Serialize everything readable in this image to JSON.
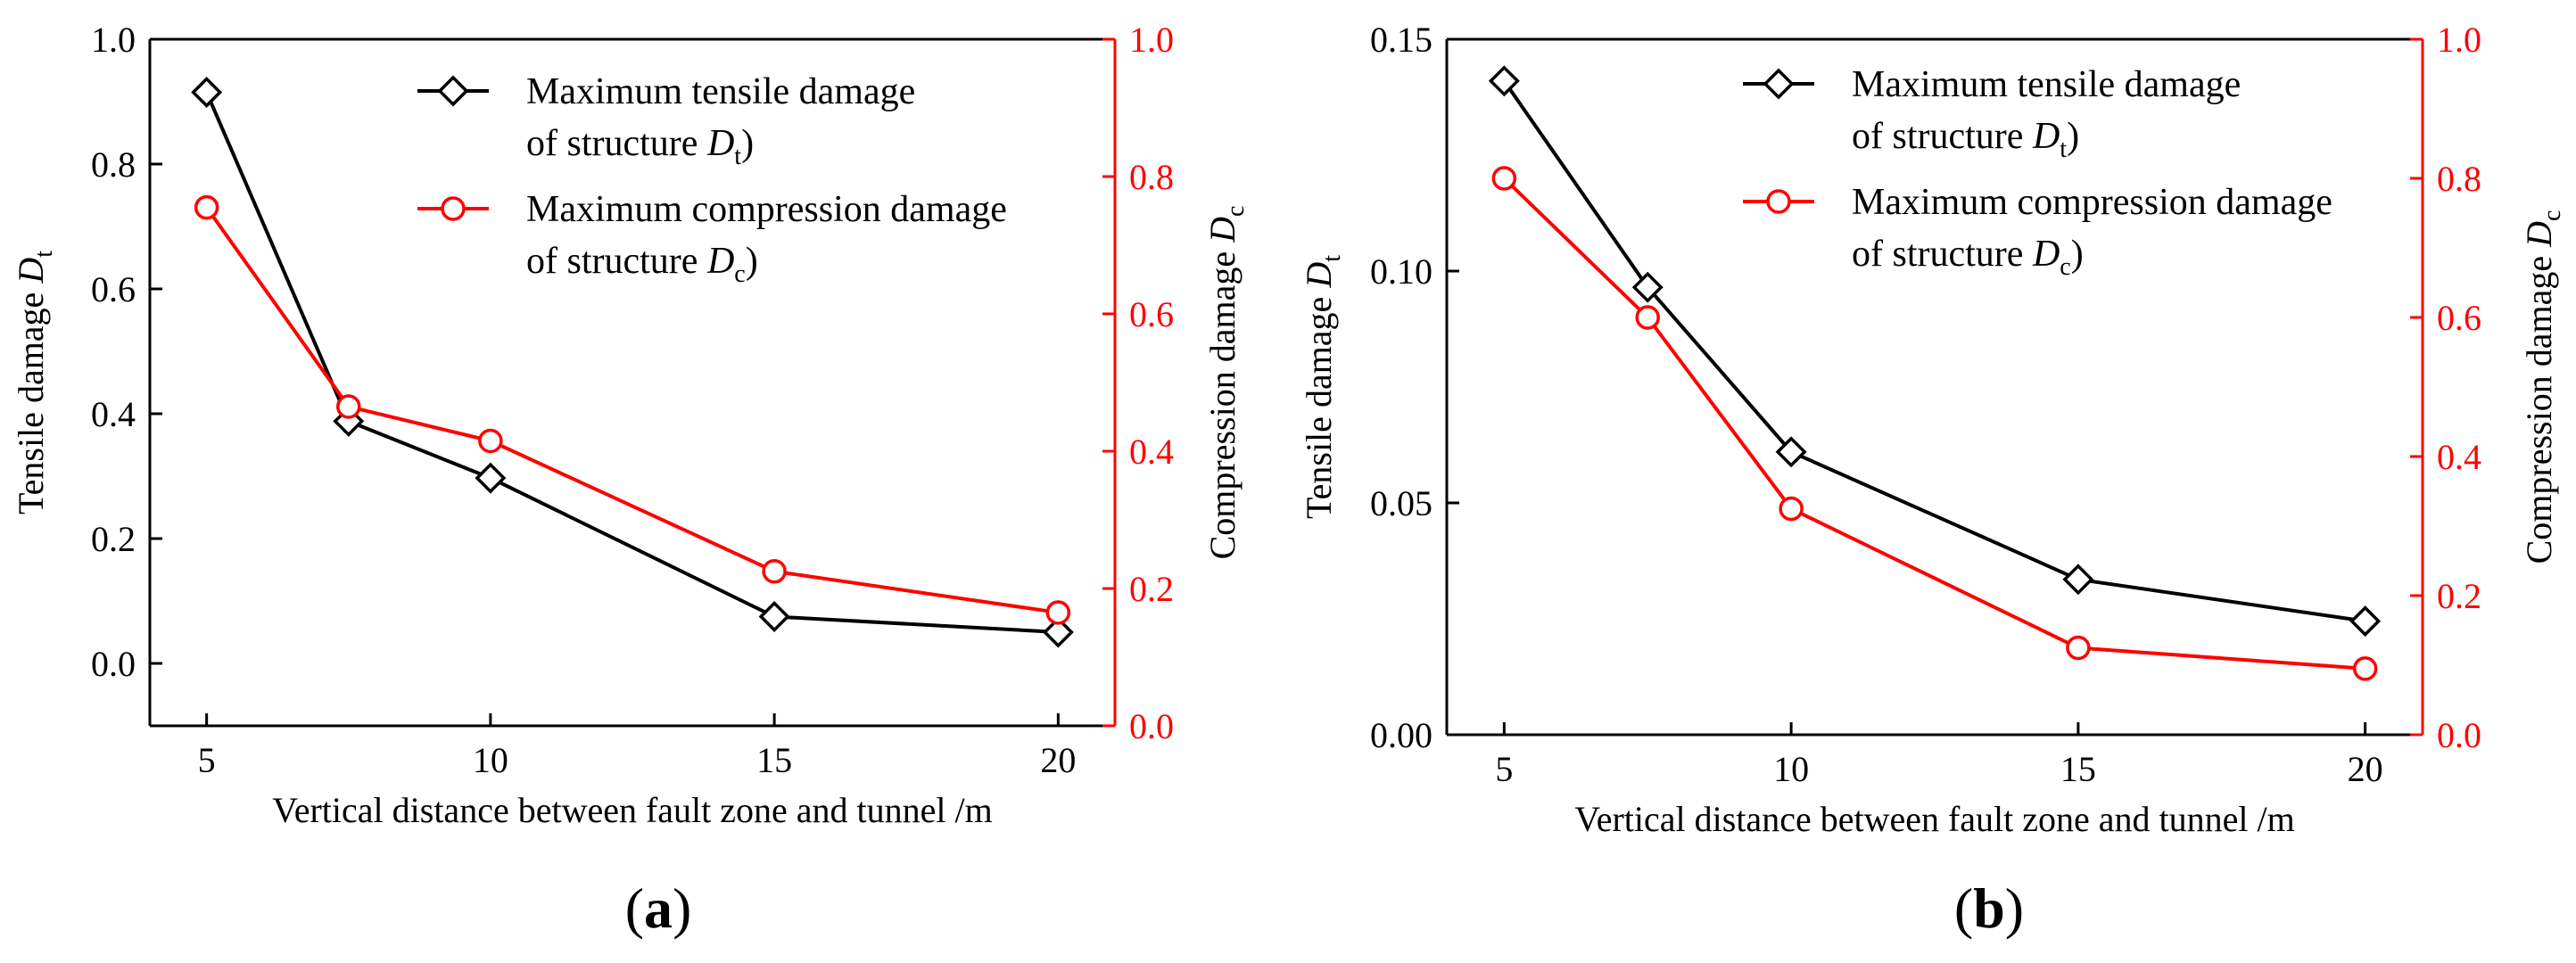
{
  "figure": {
    "colors": {
      "tensile": "#000000",
      "compression": "#ff0000"
    }
  },
  "chart_data": [
    {
      "type": "line",
      "panel_label": "(a)",
      "panel_label_parts": [
        "(",
        "a",
        ")"
      ],
      "xlabel": "Vertical distance between fault zone and tunnel /m",
      "ylabel_left": {
        "main": "Tensile damage ",
        "italic": "D",
        "sub": "t"
      },
      "ylabel_right": {
        "main": "Compression damage ",
        "italic": "D",
        "sub": "c"
      },
      "xlim": [
        4,
        21
      ],
      "xticks": [
        5,
        10,
        15,
        20
      ],
      "xtick_labels": [
        "5",
        "10",
        "15",
        "20"
      ],
      "ylim_left": [
        -0.1,
        1.0
      ],
      "yticks_left": [
        0.0,
        0.2,
        0.4,
        0.6,
        0.8,
        1.0
      ],
      "ytick_labels_left": [
        "0.0",
        "0.2",
        "0.4",
        "0.6",
        "0.8",
        "1.0"
      ],
      "ylim_right": [
        0.0,
        1.0
      ],
      "yticks_right": [
        0.0,
        0.2,
        0.4,
        0.6,
        0.8,
        1.0
      ],
      "ytick_labels_right": [
        "0.0",
        "0.2",
        "0.4",
        "0.6",
        "0.8",
        "1.0"
      ],
      "legend_position": "top-right",
      "series": [
        {
          "name": "Maximum tensile damage of structure Dt)",
          "legend_lines": [
            {
              "text": "Maximum tensile damage"
            },
            {
              "text": "of structure ",
              "italic": "D",
              "sub": "t",
              "after": ")"
            }
          ],
          "axis": "left",
          "marker": "diamond",
          "color": "#000000",
          "x": [
            5,
            7.5,
            10,
            15,
            20
          ],
          "y": [
            0.915,
            0.388,
            0.297,
            0.075,
            0.05
          ]
        },
        {
          "name": "Maximum compression damage of structure Dc)",
          "legend_lines": [
            {
              "text": "Maximum compression damage"
            },
            {
              "text": "of structure ",
              "italic": "D",
              "sub": "c",
              "after": ")"
            }
          ],
          "axis": "right",
          "marker": "circle",
          "color": "#ff0000",
          "x": [
            5,
            7.5,
            10,
            15,
            20
          ],
          "y": [
            0.755,
            0.465,
            0.415,
            0.225,
            0.165
          ]
        }
      ]
    },
    {
      "type": "line",
      "panel_label": "(b)",
      "panel_label_parts": [
        "(",
        "b",
        ")"
      ],
      "xlabel": "Vertical distance between fault zone and tunnel /m",
      "ylabel_left": {
        "main": "Tensile damage ",
        "italic": "D",
        "sub": "t"
      },
      "ylabel_right": {
        "main": "Compression damage ",
        "italic": "D",
        "sub": "c"
      },
      "xlim": [
        4,
        21
      ],
      "xticks": [
        5,
        10,
        15,
        20
      ],
      "xtick_labels": [
        "5",
        "10",
        "15",
        "20"
      ],
      "ylim_left": [
        0.0,
        0.15
      ],
      "yticks_left": [
        0.0,
        0.05,
        0.1,
        0.15
      ],
      "ytick_labels_left": [
        "0.00",
        "0.05",
        "0.10",
        "0.15"
      ],
      "ylim_right": [
        0.0,
        1.0
      ],
      "yticks_right": [
        0.0,
        0.2,
        0.4,
        0.6,
        0.8,
        1.0
      ],
      "ytick_labels_right": [
        "0.0",
        "0.2",
        "0.4",
        "0.6",
        "0.8",
        "1.0"
      ],
      "legend_position": "top-right",
      "series": [
        {
          "name": "Maximum tensile damage of structure Dt)",
          "legend_lines": [
            {
              "text": "Maximum tensile damage"
            },
            {
              "text": "of structure ",
              "italic": "D",
              "sub": "t",
              "after": ")"
            }
          ],
          "axis": "left",
          "marker": "diamond",
          "color": "#000000",
          "x": [
            5,
            7.5,
            10,
            15,
            20
          ],
          "y": [
            0.141,
            0.0965,
            0.061,
            0.0335,
            0.0245
          ]
        },
        {
          "name": "Maximum compression damage of structure Dc)",
          "legend_lines": [
            {
              "text": "Maximum compression damage"
            },
            {
              "text": "of structure ",
              "italic": "D",
              "sub": "c",
              "after": ")"
            }
          ],
          "axis": "right",
          "marker": "circle",
          "color": "#ff0000",
          "x": [
            5,
            7.5,
            10,
            15,
            20
          ],
          "y": [
            0.8,
            0.6,
            0.325,
            0.125,
            0.095
          ]
        }
      ]
    }
  ]
}
